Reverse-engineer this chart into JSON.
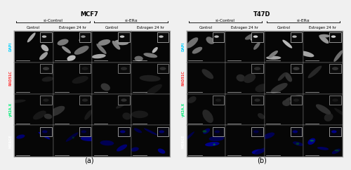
{
  "fig_width": 5.0,
  "fig_height": 2.42,
  "dpi": 100,
  "bg_color": "#f0f0f0",
  "panel_bg": "#000000",
  "panel_a_title": "MCF7",
  "panel_b_title": "T47D",
  "panel_a_label": "(a)",
  "panel_b_label": "(b)",
  "si_control_label": "si-Control",
  "si_era_label": "si-ERα",
  "col_labels": [
    "Control",
    "Estrogen 24 hr",
    "Control",
    "Estrogen 24 hr"
  ],
  "row_labels_a": [
    "DAPI",
    "RAD51C",
    "γH2A.X",
    "MERGE"
  ],
  "row_labels_b": [
    "DAPI",
    "RAD51C",
    "γH2A.X",
    "MERGE"
  ],
  "row_label_colors_a": [
    "#00cfff",
    "#ff3333",
    "#00ee77",
    "#ffffff"
  ],
  "row_label_colors_b": [
    "#00cfff",
    "#ff3333",
    "#00ee77",
    "#ffffff"
  ],
  "title_fontsize": 6.0,
  "label_fontsize": 4.2,
  "col_label_fontsize": 3.8,
  "row_label_fontsize": 3.5,
  "sublabel_fontsize": 7.0,
  "cell_border_color": "#777777",
  "outer_border_color": "#999999"
}
